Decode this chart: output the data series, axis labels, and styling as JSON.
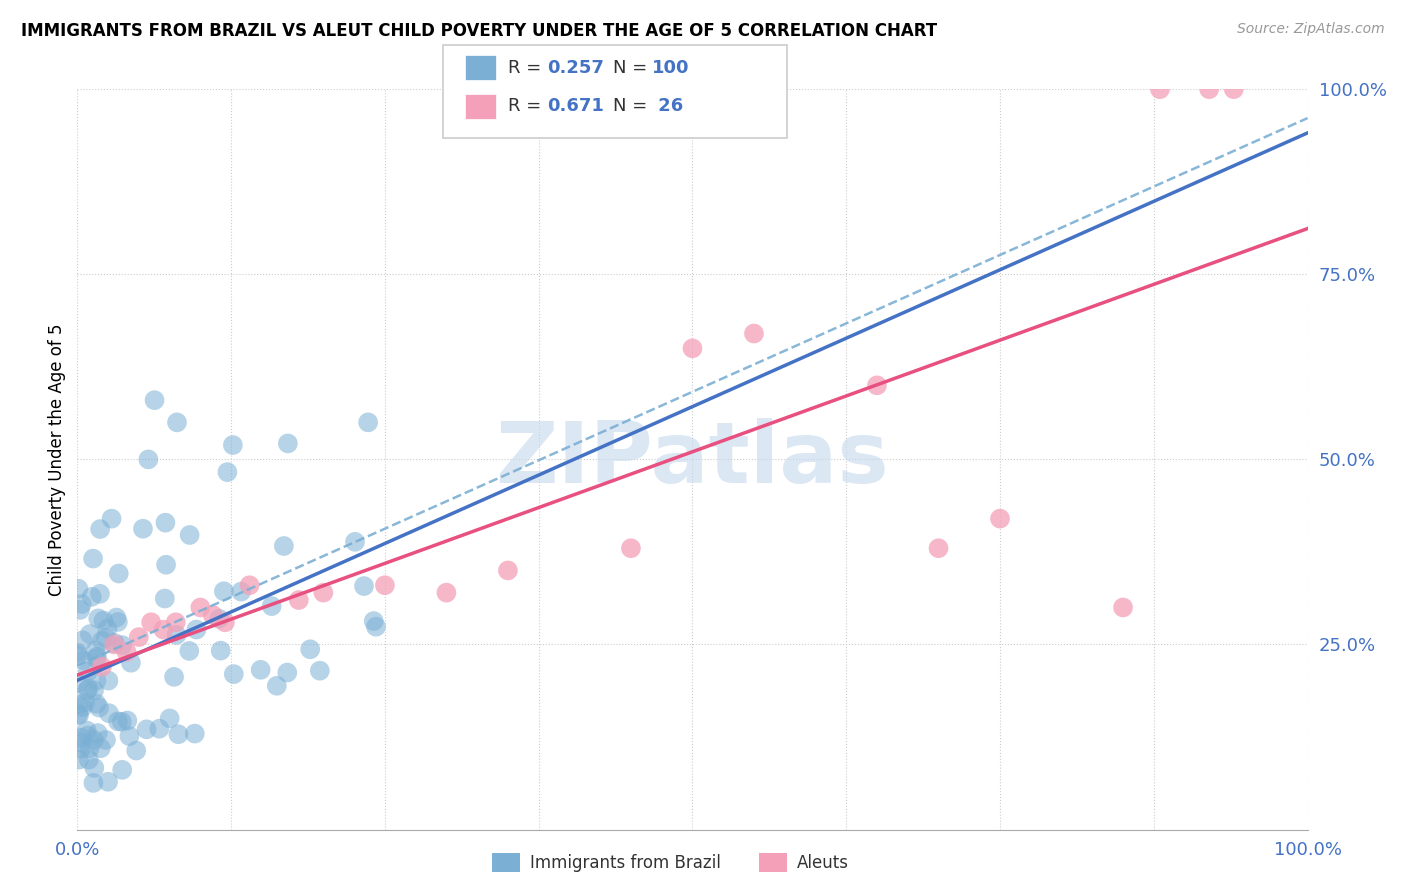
{
  "title": "IMMIGRANTS FROM BRAZIL VS ALEUT CHILD POVERTY UNDER THE AGE OF 5 CORRELATION CHART",
  "source": "Source: ZipAtlas.com",
  "ylabel": "Child Poverty Under the Age of 5",
  "xlim": [
    0.0,
    1.0
  ],
  "ylim": [
    0.0,
    1.0
  ],
  "color_brazil": "#7bafd4",
  "color_aleut": "#f4a0b8",
  "color_brazil_line": "#4472c4",
  "color_aleut_line": "#e85080",
  "color_text_blue": "#4472c4",
  "watermark": "ZIPatlas",
  "brazil_seed": 12,
  "aleut_points": [
    [
      0.02,
      0.22
    ],
    [
      0.03,
      0.25
    ],
    [
      0.04,
      0.24
    ],
    [
      0.05,
      0.26
    ],
    [
      0.06,
      0.28
    ],
    [
      0.07,
      0.27
    ],
    [
      0.08,
      0.28
    ],
    [
      0.1,
      0.3
    ],
    [
      0.11,
      0.29
    ],
    [
      0.12,
      0.28
    ],
    [
      0.14,
      0.33
    ],
    [
      0.18,
      0.31
    ],
    [
      0.2,
      0.32
    ],
    [
      0.25,
      0.33
    ],
    [
      0.3,
      0.32
    ],
    [
      0.35,
      0.35
    ],
    [
      0.45,
      0.38
    ],
    [
      0.5,
      0.65
    ],
    [
      0.55,
      0.67
    ],
    [
      0.65,
      0.6
    ],
    [
      0.7,
      0.38
    ],
    [
      0.75,
      0.42
    ],
    [
      0.85,
      0.3
    ],
    [
      0.88,
      1.0
    ],
    [
      0.92,
      1.0
    ],
    [
      0.94,
      1.0
    ]
  ]
}
